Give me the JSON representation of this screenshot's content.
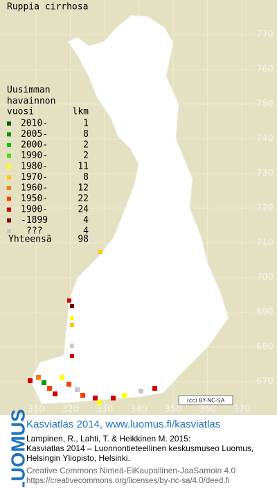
{
  "title": "Ruppia cirrhosa",
  "legend": {
    "heading": [
      "Uusimman",
      "havainnon"
    ],
    "year_header": "vuosi",
    "count_header": "lkm",
    "rows": [
      {
        "label": "2010-",
        "count": "1",
        "color": "#006400"
      },
      {
        "label": "2005-",
        "count": "8",
        "color": "#009600"
      },
      {
        "label": "2000-",
        "count": "2",
        "color": "#00c800"
      },
      {
        "label": "1990-",
        "count": "2",
        "color": "#44e000"
      },
      {
        "label": "1980-",
        "count": "11",
        "color": "#ffff00"
      },
      {
        "label": "1970-",
        "count": "8",
        "color": "#ffc800"
      },
      {
        "label": "1960-",
        "count": "12",
        "color": "#ff7800"
      },
      {
        "label": "1950-",
        "count": "22",
        "color": "#ff3c00"
      },
      {
        "label": "1900-",
        "count": "24",
        "color": "#d20000"
      },
      {
        "label": "-1899",
        "count": "4",
        "color": "#820000"
      },
      {
        "label": "???",
        "count": "4",
        "color": "#c8c8c8"
      }
    ],
    "total_label": "Yhteensä",
    "total": "98"
  },
  "grid": {
    "x_labels": [
      310,
      320,
      330,
      340,
      350,
      360,
      370
    ],
    "y_labels": [
      770,
      760,
      750,
      740,
      730,
      720,
      710,
      700,
      690,
      680,
      670
    ]
  },
  "license_badge": "(cc) BY-NC-SA",
  "footer": {
    "logo": "LUOMUS",
    "headline": "Kasviatlas 2014, www.luomus.fi/kasviatlas",
    "citation": [
      "Lampinen, R., Lahti, T. & Heikkinen M. 2015:",
      "Kasviatlas 2014 – Luonnontieteellinen keskusmuseo Luomus,",
      "Helsingin Yliopisto, Helsinki."
    ],
    "license": [
      "Creative Commons Nimeä-EiKaupallinen-JaaSamoin 4.0",
      "https://creativecommons.org/licenses/by-nc-sa/4.0/deed.fi"
    ]
  }
}
